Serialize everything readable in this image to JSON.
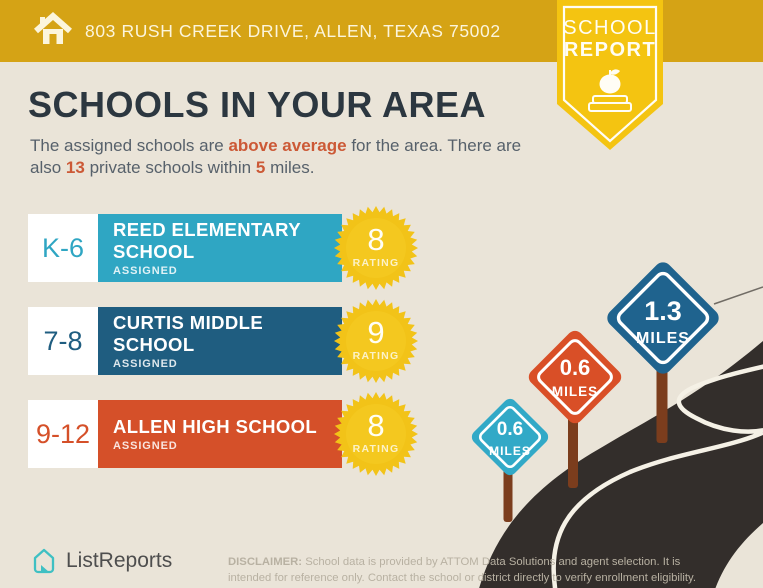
{
  "header": {
    "address": "803 RUSH CREEK DRIVE, ALLEN, TEXAS 75002",
    "badge": {
      "line1": "SCHOOL",
      "line2": "REPORT"
    }
  },
  "main": {
    "title": "SCHOOLS IN YOUR AREA",
    "subtitle": {
      "pre": "The assigned schools are ",
      "hl1": "above average",
      "mid1": " for the area. There are also ",
      "hl2": "13",
      "mid2": " private schools within ",
      "hl3": "5",
      "post": " miles."
    }
  },
  "schools": [
    {
      "grades": "K-6",
      "name": "REED ELEMENTARY SCHOOL",
      "status": "ASSIGNED",
      "rating": "8",
      "rating_label": "RATING",
      "color": "#2FA6C3"
    },
    {
      "grades": "7-8",
      "name": "CURTIS MIDDLE SCHOOL",
      "status": "ASSIGNED",
      "rating": "9",
      "rating_label": "RATING",
      "color": "#1F5D80"
    },
    {
      "grades": "9-12",
      "name": "ALLEN HIGH SCHOOL",
      "status": "ASSIGNED",
      "rating": "8",
      "rating_label": "RATING",
      "color": "#D55029"
    }
  ],
  "road_signs": [
    {
      "value": "0.6",
      "unit": "MILES",
      "color": "#32A9C7"
    },
    {
      "value": "0.6",
      "unit": "MILES",
      "color": "#D94F27"
    },
    {
      "value": "1.3",
      "unit": "MILES",
      "color": "#1F638E"
    }
  ],
  "footer": {
    "brand": "ListReports",
    "disclaimer_label": "DISCLAIMER:",
    "disclaimer_text": " School data is provided by ATTOM Data Solutions and agent selection. It is intended for reference only. Contact the school or district directly to verify enrollment eligibility."
  },
  "colors": {
    "background": "#EAE4D8",
    "header_gold": "#D5A315",
    "ribbon_yellow": "#F4C411",
    "title_dark": "#2C3740",
    "highlight_orange": "#CC5936",
    "rating_yellow": "#F2C318",
    "road_dark": "#332E2B",
    "post_brown": "#7B3D1D",
    "brand_teal": "#3FC0C3"
  }
}
